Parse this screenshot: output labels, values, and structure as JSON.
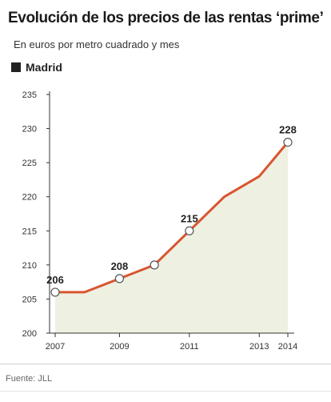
{
  "header": {
    "title": "Evolución de los precios de las rentas ‘prime’",
    "subtitle": "En euros por metro cuadrado y mes"
  },
  "legend": {
    "label": "Madrid"
  },
  "source": "Fuente: JLL",
  "colors": {
    "line": "#d9552f",
    "area": "#eef0e2",
    "axis": "#333333",
    "marker_fill": "#ffffff"
  },
  "chart_data": {
    "type": "line",
    "x": [
      2007,
      2008,
      2009,
      2010,
      2011,
      2012,
      2013,
      2014
    ],
    "series": [
      {
        "name": "Madrid",
        "values": [
          206,
          206,
          208,
          210,
          215,
          220,
          223,
          228
        ]
      }
    ],
    "markers": [
      2007,
      2009,
      2010,
      2011,
      2014
    ],
    "data_labels": [
      {
        "x": 2007,
        "text": "206"
      },
      {
        "x": 2009,
        "text": "208"
      },
      {
        "x": 2011,
        "text": "215"
      },
      {
        "x": 2014,
        "text": "228"
      }
    ],
    "xticks": [
      2007,
      2009,
      2011,
      2013,
      2014
    ],
    "yticks": [
      200,
      205,
      210,
      215,
      220,
      225,
      230,
      235
    ],
    "ylim": [
      200,
      235
    ],
    "xlim": [
      2007,
      2014
    ],
    "area_fill": true,
    "grid": false
  }
}
